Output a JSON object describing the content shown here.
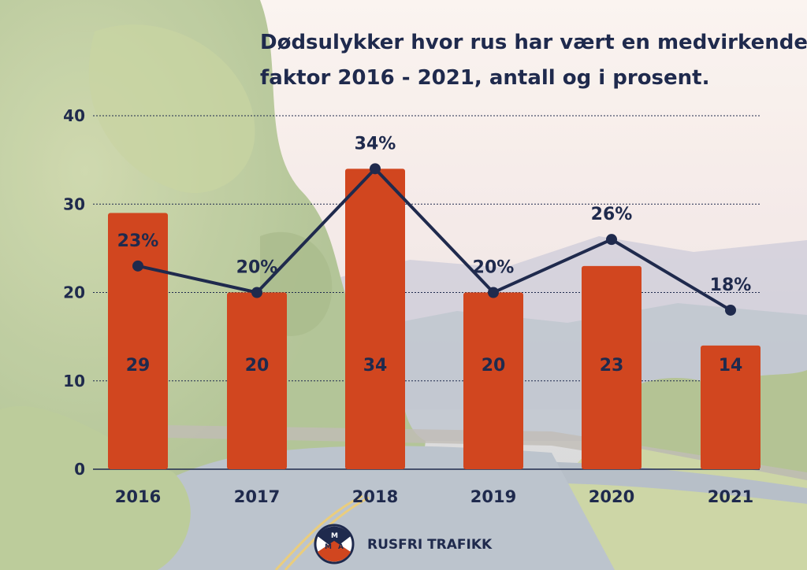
{
  "chart_data": {
    "type": "bar",
    "title": "Dødsulykker hvor rus har vært en medvirkende faktor 2016 - 2021, antall og i prosent.",
    "title_lines": [
      "Dødsulykker hvor rus har vært en medvirkende",
      "faktor 2016 - 2021, antall og i prosent."
    ],
    "categories": [
      "2016",
      "2017",
      "2018",
      "2019",
      "2020",
      "2021"
    ],
    "series": [
      {
        "type": "bar",
        "values": [
          29,
          20,
          34,
          20,
          23,
          14
        ],
        "labels": [
          "29",
          "20",
          "34",
          "20",
          "23",
          "14"
        ],
        "color": "#d1461f"
      },
      {
        "type": "line",
        "values": [
          23,
          20,
          34,
          20,
          26,
          18
        ],
        "labels": [
          "23%",
          "20%",
          "34%",
          "20%",
          "26%",
          "18%"
        ],
        "color": "#1f2a4d"
      }
    ],
    "ylim": [
      0,
      40
    ],
    "yticks": [
      "0",
      "10",
      "20",
      "30",
      "40"
    ],
    "grid": true,
    "xlabel": "",
    "ylabel": ""
  },
  "brand": {
    "name": "RUSFRI TRAFIKK",
    "logo_icon": "mma-shield-logo-icon",
    "logo_letters": [
      "M",
      "M",
      "A"
    ]
  },
  "colors": {
    "title": "#1f2a4d",
    "bar": "#d1461f",
    "line": "#1f2a4d",
    "grid": "#1f2a4d"
  }
}
